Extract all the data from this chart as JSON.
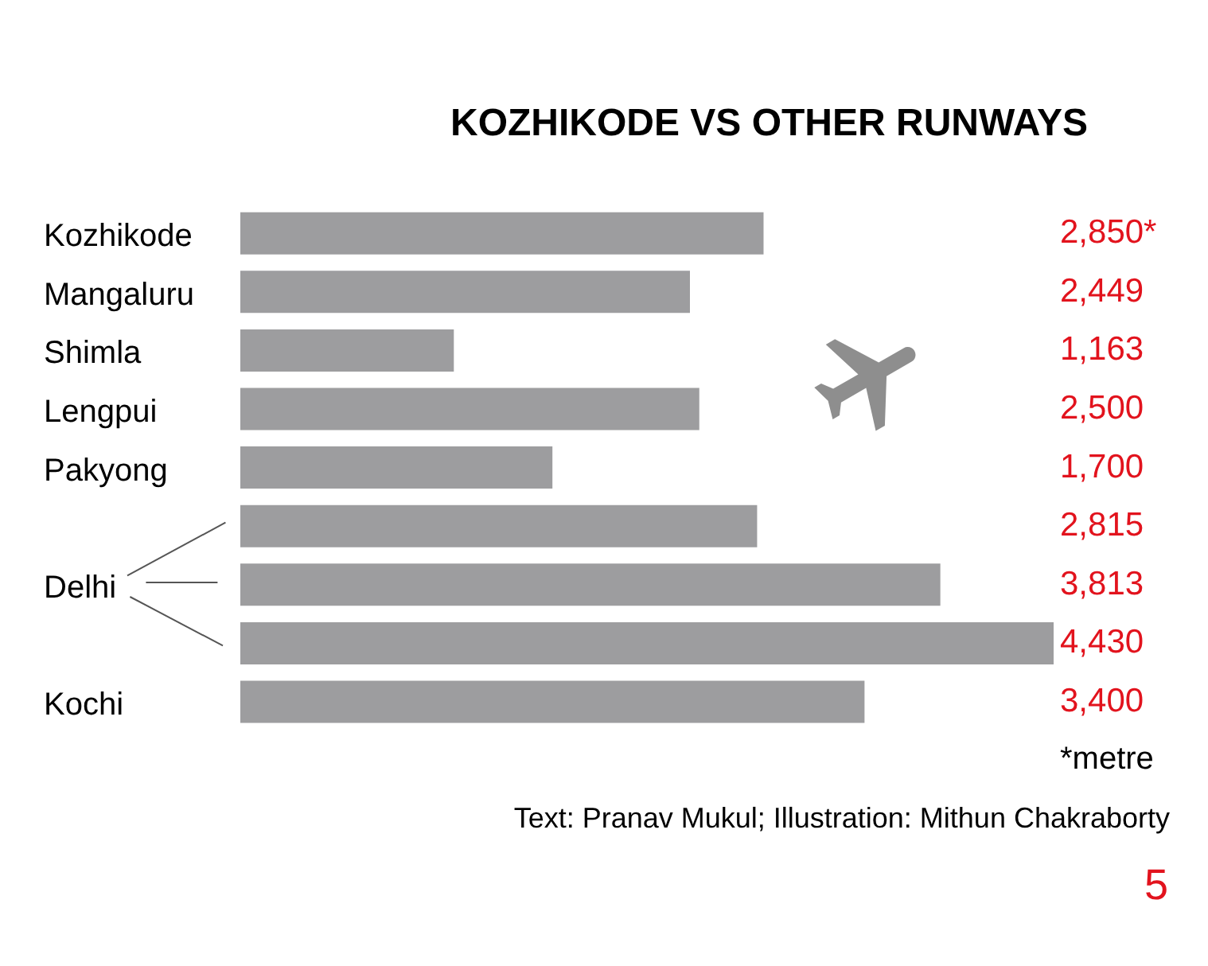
{
  "chart_data": {
    "type": "bar",
    "orientation": "horizontal",
    "title": "KOZHIKODE VS OTHER RUNWAYS",
    "categories": [
      "Kozhikode",
      "Mangaluru",
      "Shimla",
      "Lengpui",
      "Pakyong",
      null,
      "Delhi",
      null,
      "Kochi"
    ],
    "values": [
      2850,
      2449,
      1163,
      2500,
      1700,
      2815,
      3813,
      4430,
      3400
    ],
    "value_labels": [
      "2,850*",
      "2,449",
      "1,163",
      "2,500",
      "1,700",
      "2,815",
      "3,813",
      "4,430",
      "3,400"
    ],
    "color": "#9d9d9f",
    "xlim": [
      0,
      4430
    ],
    "tick_labels": "y",
    "annotations": [
      "*metre",
      "Text: Pranav Mukul; Illustration: Mithun Chakraborty",
      "5"
    ]
  }
}
